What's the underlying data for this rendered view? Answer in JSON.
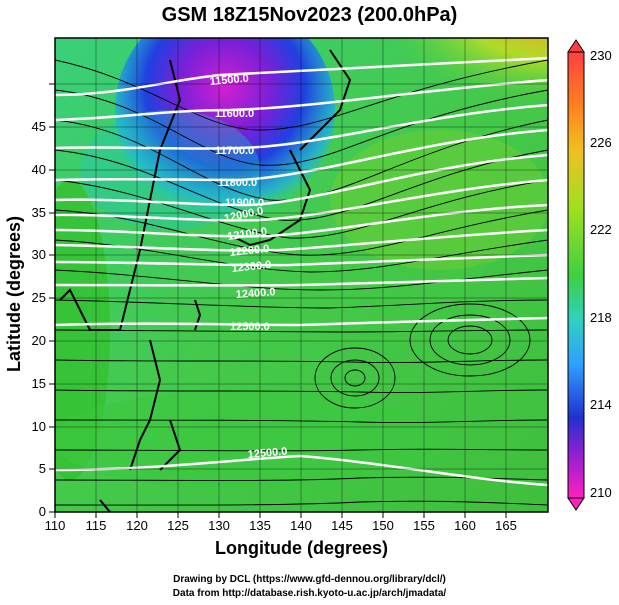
{
  "title": "GSM 18Z15Nov2023 (200.0hPa)",
  "axes": {
    "xlabel": "Longitude (degrees)",
    "ylabel": "Latitude  (degrees)",
    "xticks": [
      "110",
      "115",
      "120",
      "125",
      "130",
      "135",
      "140",
      "145",
      "150",
      "155",
      "160",
      "165"
    ],
    "yticks": [
      "0",
      "5",
      "10",
      "15",
      "20",
      "25",
      "30",
      "35",
      "40",
      "45"
    ]
  },
  "colorbar": {
    "labels": [
      "230",
      "226",
      "222",
      "218",
      "214",
      "210"
    ]
  },
  "contour_labels": [
    "11500.0",
    "11600.0",
    "11700.0",
    "11800.0",
    "11900.0",
    "12000.0",
    "12100.0",
    "12200.0",
    "12300.0",
    "12400.0",
    "12500.0",
    "12500.0"
  ],
  "credits": {
    "line1": "Drawing by DCL (https://www.gfd-dennou.org/library/dcl/)",
    "line2": "Data from http://database.rish.kyoto-u.ac.jp/arch/jmadata/"
  }
}
